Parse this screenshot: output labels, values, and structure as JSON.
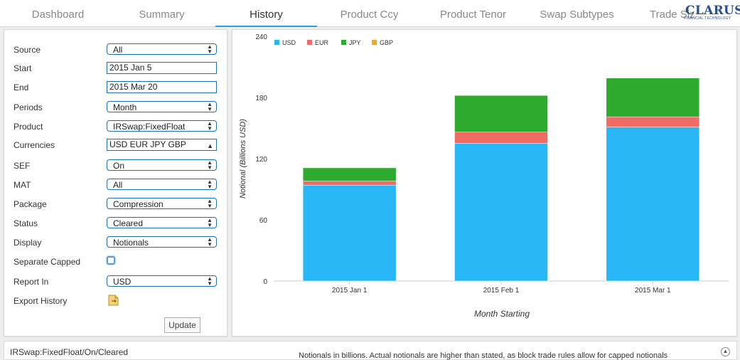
{
  "tabs": [
    {
      "label": "Dashboard",
      "active": false
    },
    {
      "label": "Summary",
      "active": false
    },
    {
      "label": "History",
      "active": true
    },
    {
      "label": "Product Ccy",
      "active": false
    },
    {
      "label": "Product Tenor",
      "active": false
    },
    {
      "label": "Swap Subtypes",
      "active": false
    },
    {
      "label": "Trade Sizes",
      "active": false
    }
  ],
  "logo": {
    "name": "CLARUS",
    "tagline": "FINANCIAL TECHNOLOGY"
  },
  "form": {
    "source": {
      "label": "Source",
      "value": "All"
    },
    "start": {
      "label": "Start",
      "value": "2015 Jan 5"
    },
    "end": {
      "label": "End",
      "value": "2015 Mar 20"
    },
    "periods": {
      "label": "Periods",
      "value": "Month"
    },
    "product": {
      "label": "Product",
      "value": "IRSwap:FixedFloat"
    },
    "currencies": {
      "label": "Currencies",
      "value": "USD EUR JPY GBP"
    },
    "sef": {
      "label": "SEF",
      "value": "On"
    },
    "mat": {
      "label": "MAT",
      "value": "All"
    },
    "package": {
      "label": "Package",
      "value": "Compression"
    },
    "status": {
      "label": "Status",
      "value": "Cleared"
    },
    "display": {
      "label": "Display",
      "value": "Notionals"
    },
    "separate_capped": {
      "label": "Separate Capped",
      "checked": false
    },
    "report_in": {
      "label": "Report In",
      "value": "USD"
    },
    "export_history": {
      "label": "Export History",
      "icon": "export-file-icon"
    },
    "update_label": "Update"
  },
  "chart_data": {
    "type": "bar",
    "stacked": true,
    "categories": [
      "2015 Jan 1",
      "2015 Feb 1",
      "2015 Mar 1"
    ],
    "series": [
      {
        "name": "USD",
        "color": "#29b6f6",
        "values": [
          94,
          135,
          151
        ]
      },
      {
        "name": "EUR",
        "color": "#ef6b63",
        "values": [
          4,
          11,
          10
        ]
      },
      {
        "name": "JPY",
        "color": "#2eaa2e",
        "values": [
          13,
          36,
          38
        ]
      },
      {
        "name": "GBP",
        "color": "#f5a623",
        "values": [
          0,
          0,
          0
        ]
      }
    ],
    "xlabel": "Month Starting",
    "ylabel": "Notional (Billions USD)",
    "ylim": [
      0,
      240
    ],
    "yticks": [
      "0",
      "60",
      "120",
      "180",
      "240"
    ],
    "legend": "top-left",
    "grid": false
  },
  "footer": {
    "path": "IRSwap:FixedFloat/On/Cleared",
    "note": "Notionals in billions. Actual notionals are higher than stated, as block trade rules allow for capped notionals"
  }
}
